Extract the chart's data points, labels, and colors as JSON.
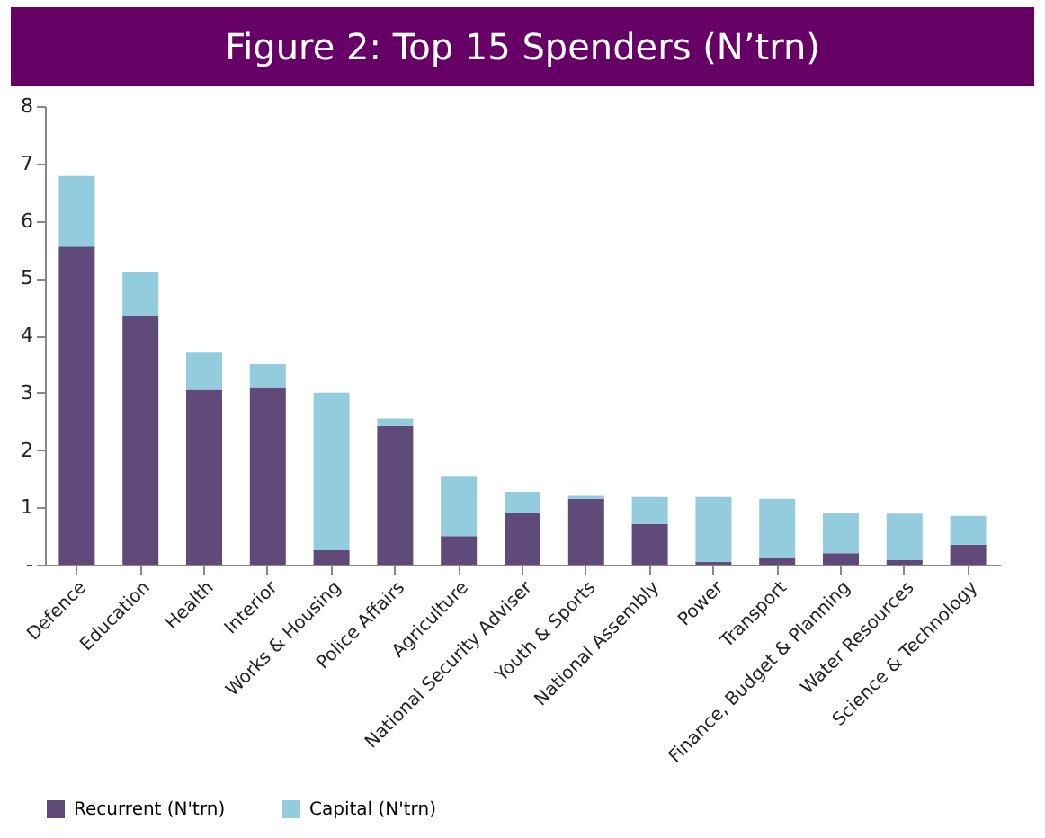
{
  "chart_data": {
    "type": "bar",
    "title": "Figure 2: Top 15 Spenders  (N’trn)",
    "stacked": true,
    "legend": "bottom",
    "grid": false,
    "categories": [
      "Defence",
      "Education",
      "Health",
      "Interior",
      "Works & Housing",
      "Police Affairs",
      "Agriculture",
      "National Security Adviser",
      "Youth & Sports",
      "National Assembly",
      "Power",
      "Transport",
      "Finance, Budget & Planning",
      "Water Resources",
      "Science & Technology"
    ],
    "series": [
      {
        "name": "Recurrent (N'trn)",
        "color": "#5f4a7a",
        "values": [
          5.55,
          4.33,
          3.05,
          3.1,
          0.25,
          2.42,
          0.5,
          0.91,
          1.15,
          0.71,
          0.05,
          0.11,
          0.2,
          0.08,
          0.35
        ]
      },
      {
        "name": "Capital (N'trn)",
        "color": "#93cddd",
        "values": [
          1.23,
          0.77,
          0.65,
          0.4,
          2.75,
          0.13,
          1.05,
          0.36,
          0.05,
          0.47,
          1.13,
          1.04,
          0.7,
          0.81,
          0.5
        ]
      }
    ],
    "ylim": [
      0,
      8
    ],
    "yticks": [
      {
        "value": 0,
        "label": "-"
      },
      1,
      2,
      3,
      4,
      5,
      6,
      7,
      8
    ]
  }
}
